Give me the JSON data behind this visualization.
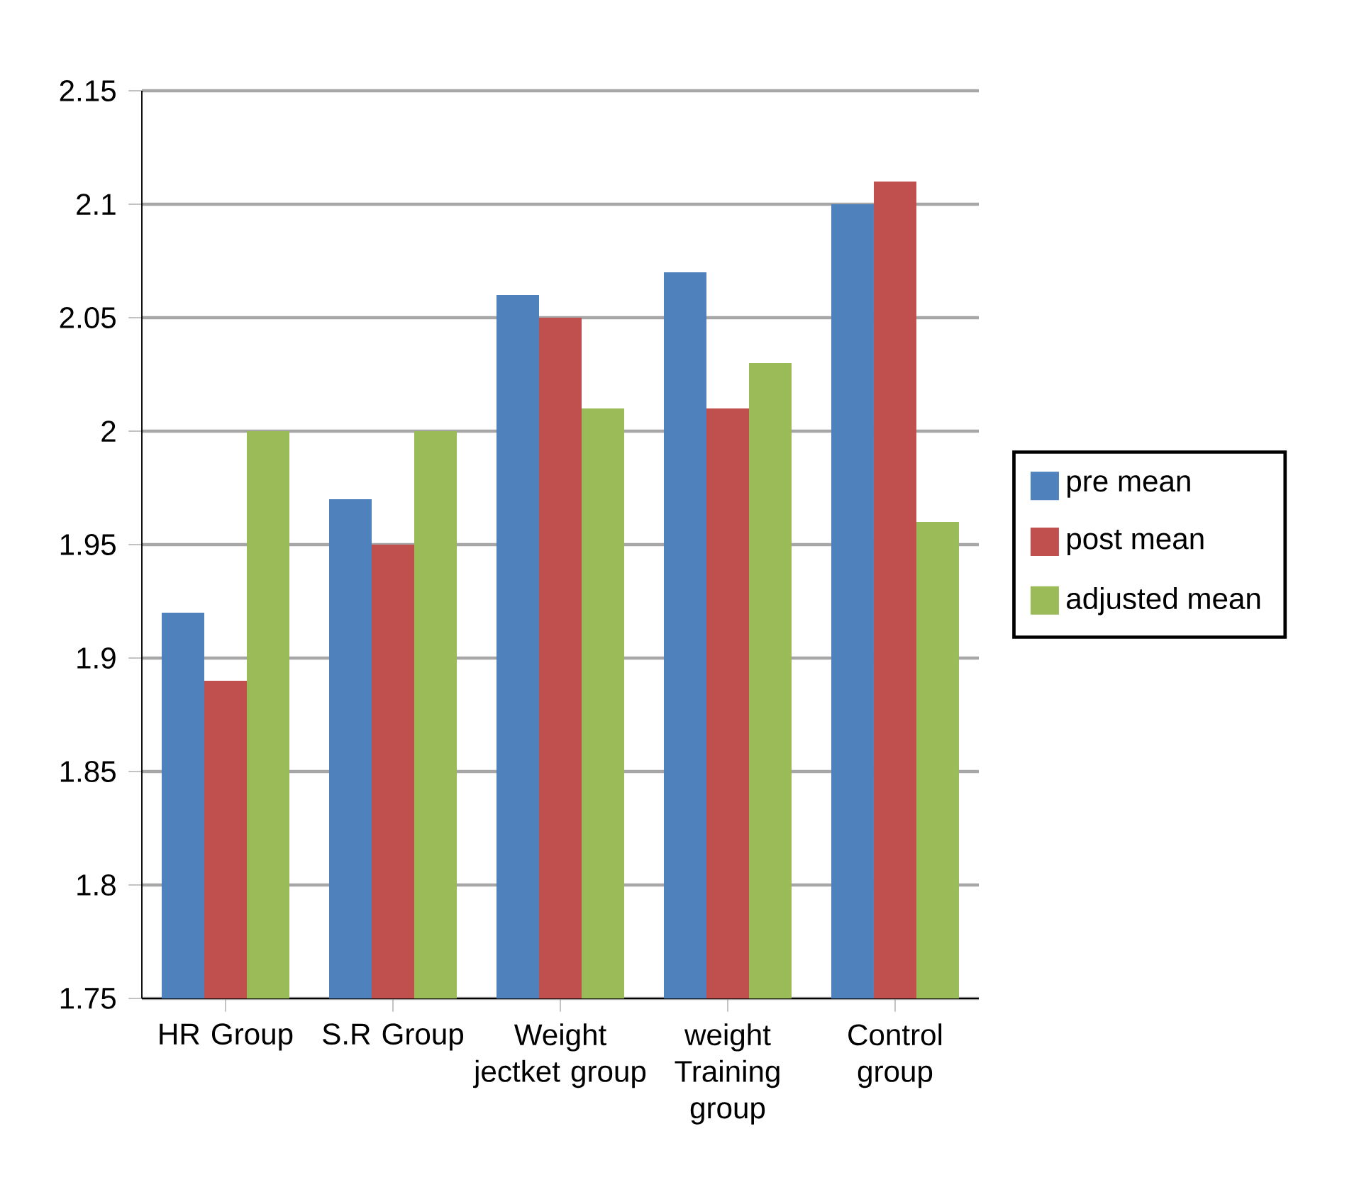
{
  "chart_data": {
    "type": "bar",
    "categories": [
      "HR Group",
      "S.R Group",
      "Weight jectket group",
      "weight Training group",
      "Control group"
    ],
    "series": [
      {
        "name": "pre mean",
        "color": "#4f81bd",
        "values": [
          1.92,
          1.97,
          2.06,
          2.07,
          2.1
        ]
      },
      {
        "name": "post mean",
        "color": "#c0504d",
        "values": [
          1.89,
          1.95,
          2.05,
          2.01,
          2.11
        ]
      },
      {
        "name": "adjusted mean",
        "color": "#9bbb59",
        "values": [
          2.0,
          2.0,
          2.01,
          2.03,
          1.96
        ]
      }
    ],
    "ylim": [
      1.75,
      2.15
    ],
    "yticks": [
      1.75,
      1.8,
      1.85,
      1.9,
      1.95,
      2,
      2.05,
      2.1,
      2.15
    ],
    "grid": "y",
    "legend": "right"
  }
}
